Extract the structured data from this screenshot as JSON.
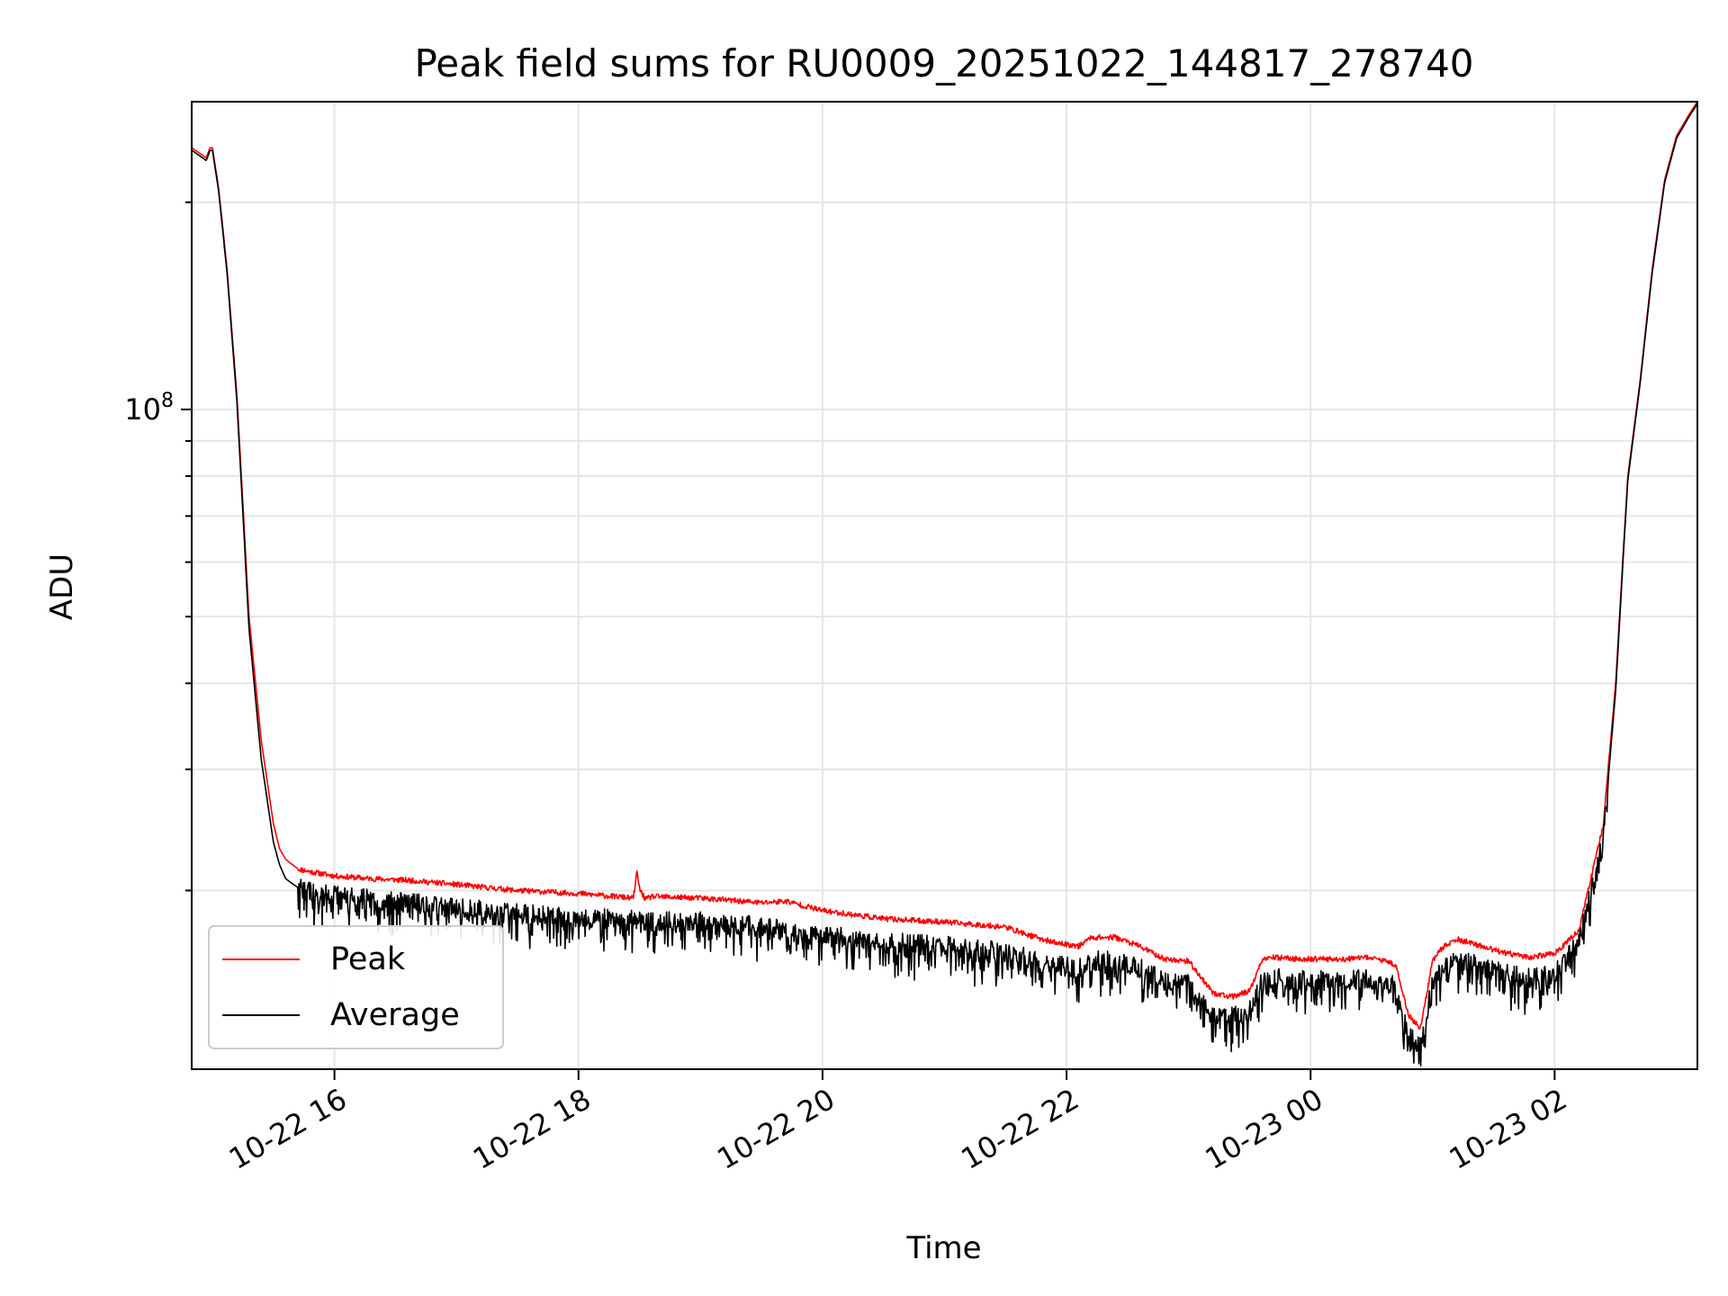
{
  "chart_data": {
    "type": "line",
    "title": "Peak field sums for RU0009_20251022_144817_278740",
    "xlabel": "Time",
    "ylabel": "ADU",
    "yscale": "log",
    "x_unit": "hours since 10-22 00:00",
    "xlim": [
      14.83,
      27.17
    ],
    "ylim": [
      11000000,
      280000000
    ],
    "x_ticks": [
      16,
      18,
      20,
      22,
      24,
      26
    ],
    "x_tick_labels": [
      "10-22 16",
      "10-22 18",
      "10-22 20",
      "10-22 22",
      "10-23 00",
      "10-23 02"
    ],
    "y_major_ticks": [
      100000000
    ],
    "y_major_tick_labels": [
      {
        "base": "10",
        "exp": "8"
      }
    ],
    "y_minor_ticks": [
      20000000,
      30000000,
      40000000,
      50000000,
      60000000,
      70000000,
      80000000,
      90000000,
      200000000
    ],
    "grid": true,
    "legend": {
      "location": "lower-left",
      "entries": [
        "Peak",
        "Average"
      ]
    },
    "series": [
      {
        "name": "Peak",
        "color": "#ff0000",
        "x": [
          14.83,
          14.95,
          14.98,
          15.0,
          15.05,
          15.12,
          15.2,
          15.3,
          15.4,
          15.5,
          15.55,
          15.6,
          15.7,
          15.8,
          16.0,
          16.3,
          16.6,
          17.0,
          17.5,
          18.0,
          18.45,
          18.48,
          18.5,
          18.55,
          18.6,
          19.0,
          19.5,
          19.7,
          20.0,
          20.5,
          21.0,
          21.5,
          21.7,
          21.9,
          22.1,
          22.2,
          22.4,
          22.6,
          22.8,
          23.0,
          23.2,
          23.35,
          23.5,
          23.6,
          23.7,
          23.9,
          24.1,
          24.3,
          24.5,
          24.7,
          24.8,
          24.9,
          25.0,
          25.05,
          25.1,
          25.2,
          25.4,
          25.6,
          25.8,
          26.0,
          26.2,
          26.4,
          26.5,
          26.55,
          26.6,
          26.7,
          26.8,
          26.9,
          27.0,
          27.1,
          27.17
        ],
        "y": [
          240000000,
          232000000,
          240000000,
          240000000,
          210000000,
          160000000,
          105000000,
          50000000,
          33000000,
          25000000,
          23000000,
          22200000,
          21500000,
          21300000,
          21000000,
          20800000,
          20700000,
          20400000,
          20000000,
          19800000,
          19500000,
          21300000,
          20100000,
          19400000,
          19600000,
          19500000,
          19200000,
          19300000,
          18700000,
          18200000,
          18000000,
          17700000,
          17200000,
          16800000,
          16600000,
          17100000,
          17100000,
          16600000,
          15900000,
          15800000,
          14200000,
          14000000,
          14300000,
          15800000,
          16000000,
          15900000,
          15900000,
          15900000,
          16000000,
          15600000,
          13200000,
          12600000,
          15800000,
          16300000,
          16600000,
          17000000,
          16600000,
          16200000,
          16000000,
          16200000,
          17500000,
          25000000,
          40000000,
          57000000,
          80000000,
          110000000,
          160000000,
          215000000,
          250000000,
          268000000,
          280000000
        ]
      },
      {
        "name": "Average",
        "color": "#000000",
        "x": [
          14.83,
          14.95,
          14.98,
          15.0,
          15.05,
          15.12,
          15.2,
          15.3,
          15.4,
          15.5,
          15.55,
          15.6,
          15.7,
          15.8,
          16.0,
          16.3,
          16.6,
          17.0,
          17.5,
          18.0,
          18.45,
          18.5,
          18.55,
          18.6,
          19.0,
          19.5,
          20.0,
          20.5,
          21.0,
          21.5,
          21.7,
          21.9,
          22.1,
          22.2,
          22.4,
          22.6,
          22.8,
          23.0,
          23.2,
          23.35,
          23.5,
          23.6,
          23.7,
          23.9,
          24.1,
          24.3,
          24.5,
          24.7,
          24.8,
          24.9,
          25.0,
          25.05,
          25.1,
          25.2,
          25.4,
          25.6,
          25.8,
          26.0,
          26.2,
          26.4,
          26.5,
          26.55,
          26.6,
          26.7,
          26.8,
          26.9,
          27.0,
          27.1,
          27.17
        ],
        "y": [
          238000000,
          230000000,
          238000000,
          238000000,
          208000000,
          158000000,
          103000000,
          48000000,
          31000000,
          23500000,
          21800000,
          20800000,
          20200000,
          19900000,
          19700000,
          19400000,
          19200000,
          18900000,
          18500000,
          18300000,
          18100000,
          18000000,
          18000000,
          18000000,
          18000000,
          17700000,
          17200000,
          16800000,
          16600000,
          16300000,
          15900000,
          15600000,
          15400000,
          15800000,
          15800000,
          15400000,
          14800000,
          14700000,
          13200000,
          13100000,
          13400000,
          14700000,
          14900000,
          14800000,
          14800000,
          14800000,
          14900000,
          14500000,
          12300000,
          11800000,
          14700000,
          15200000,
          15500000,
          15900000,
          15500000,
          15100000,
          14900000,
          15100000,
          16800000,
          24000000,
          39000000,
          56000000,
          79000000,
          109000000,
          158000000,
          213000000,
          248000000,
          266000000,
          278000000
        ]
      }
    ]
  }
}
